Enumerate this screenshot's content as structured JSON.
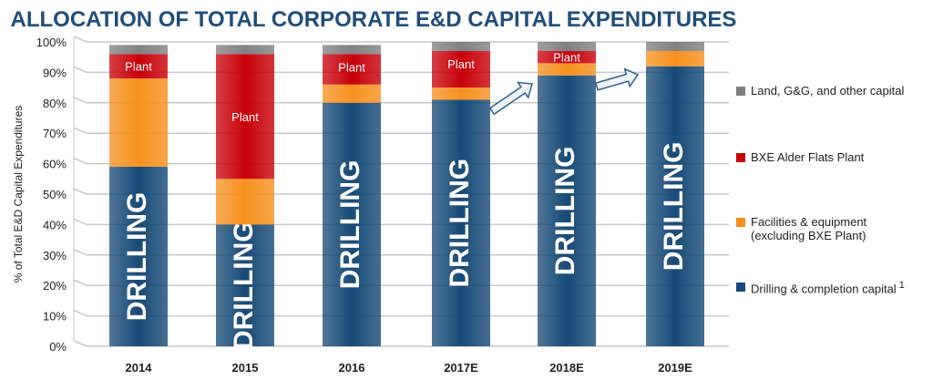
{
  "chart_data": {
    "type": "bar",
    "stacked": true,
    "title": "ALLOCATION OF TOTAL CORPORATE E&D CAPITAL EXPENDITURES",
    "ylabel": "% of Total E&D Capital Expenditures",
    "xlabel": "",
    "ylim": [
      0,
      100
    ],
    "yticks": [
      "0%",
      "10%",
      "20%",
      "30%",
      "40%",
      "50%",
      "60%",
      "70%",
      "80%",
      "90%",
      "100%"
    ],
    "categories": [
      "2014",
      "2015",
      "2016",
      "2017E",
      "2018E",
      "2019E"
    ],
    "series": [
      {
        "name": "Drilling & completion capital",
        "footnote": "1",
        "color": "#174a76",
        "values": [
          59,
          40,
          80,
          81,
          89,
          92
        ],
        "bar_label": "DRILLING"
      },
      {
        "name": "Facilities & equipment (excluding BXE Plant)",
        "color": "#f7901e",
        "values": [
          29,
          15,
          6,
          4,
          4,
          5
        ]
      },
      {
        "name": "BXE Alder Flats Plant",
        "color": "#c8000a",
        "values": [
          8,
          41,
          10,
          12,
          4,
          0
        ],
        "bar_label": "Plant"
      },
      {
        "name": "Land, G&G, and other capital",
        "color": "#808080",
        "values": [
          3,
          3,
          3,
          3,
          3,
          3
        ]
      }
    ],
    "legend_position": "right",
    "legend_lines": [
      [
        "Land, G&G, and other capital"
      ],
      [
        "BXE Alder Flats Plant"
      ],
      [
        "Facilities & equipment",
        "(excluding BXE Plant)"
      ],
      [
        "Drilling & completion capital"
      ]
    ],
    "grid": true
  }
}
